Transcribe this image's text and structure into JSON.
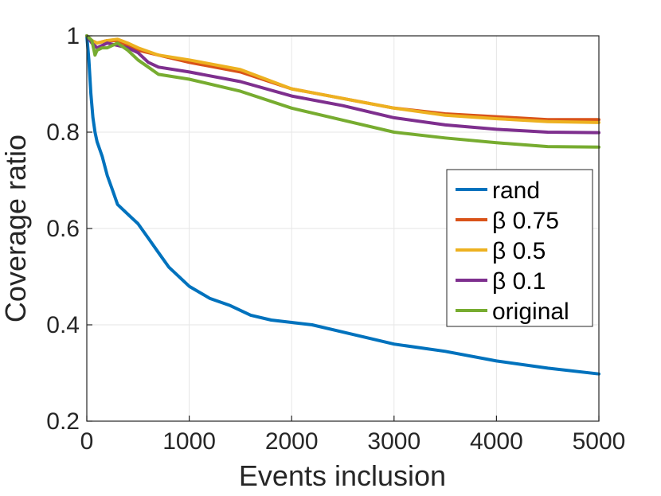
{
  "chart_data": {
    "type": "line",
    "xlabel": "Events inclusion",
    "ylabel": "Coverage ratio",
    "xlim": [
      0,
      5000
    ],
    "ylim": [
      0.2,
      1.0
    ],
    "xticks": [
      0,
      1000,
      2000,
      3000,
      4000,
      5000
    ],
    "xtick_labels": [
      "0",
      "1000",
      "2000",
      "3000",
      "4000",
      "5000"
    ],
    "yticks": [
      0.2,
      0.4,
      0.6,
      0.8,
      1.0
    ],
    "ytick_labels": [
      "0.2",
      "0.4",
      "0.6",
      "0.8",
      "1"
    ],
    "grid": true,
    "legend_position": "right",
    "series": [
      {
        "name": "rand",
        "color": "#0072BD",
        "x": [
          0,
          20,
          40,
          60,
          80,
          100,
          150,
          200,
          250,
          300,
          400,
          500,
          600,
          700,
          800,
          1000,
          1200,
          1400,
          1600,
          1800,
          2000,
          2200,
          2500,
          3000,
          3500,
          4000,
          4500,
          5000
        ],
        "y": [
          1.0,
          0.95,
          0.88,
          0.83,
          0.8,
          0.78,
          0.75,
          0.71,
          0.68,
          0.65,
          0.63,
          0.61,
          0.58,
          0.55,
          0.52,
          0.48,
          0.455,
          0.44,
          0.42,
          0.41,
          0.405,
          0.4,
          0.385,
          0.36,
          0.345,
          0.325,
          0.31,
          0.298
        ]
      },
      {
        "name": "β 0.75",
        "color": "#D95319",
        "x": [
          0,
          50,
          100,
          200,
          300,
          400,
          500,
          700,
          1000,
          1500,
          2000,
          2500,
          3000,
          3500,
          4000,
          4500,
          5000
        ],
        "y": [
          1.0,
          0.99,
          0.985,
          0.99,
          0.99,
          0.98,
          0.97,
          0.96,
          0.945,
          0.925,
          0.89,
          0.87,
          0.85,
          0.838,
          0.832,
          0.826,
          0.826
        ]
      },
      {
        "name": "β 0.5",
        "color": "#EDB120",
        "x": [
          0,
          50,
          100,
          200,
          300,
          400,
          500,
          700,
          1000,
          1500,
          2000,
          2500,
          3000,
          3500,
          4000,
          4500,
          5000
        ],
        "y": [
          1.0,
          0.99,
          0.985,
          0.99,
          0.993,
          0.985,
          0.975,
          0.96,
          0.95,
          0.93,
          0.89,
          0.87,
          0.85,
          0.835,
          0.828,
          0.822,
          0.82
        ]
      },
      {
        "name": "β 0.1",
        "color": "#7E2F8E",
        "x": [
          0,
          50,
          100,
          200,
          300,
          400,
          500,
          600,
          700,
          1000,
          1500,
          2000,
          2500,
          3000,
          3500,
          4000,
          4500,
          5000
        ],
        "y": [
          1.0,
          0.985,
          0.975,
          0.985,
          0.98,
          0.975,
          0.965,
          0.945,
          0.935,
          0.925,
          0.905,
          0.875,
          0.855,
          0.83,
          0.815,
          0.806,
          0.8,
          0.799
        ]
      },
      {
        "name": "original",
        "color": "#77AC30",
        "x": [
          0,
          50,
          80,
          100,
          150,
          200,
          300,
          400,
          500,
          600,
          700,
          1000,
          1500,
          2000,
          2500,
          3000,
          3500,
          4000,
          4500,
          5000
        ],
        "y": [
          1.0,
          0.99,
          0.96,
          0.97,
          0.975,
          0.975,
          0.985,
          0.97,
          0.95,
          0.935,
          0.92,
          0.91,
          0.885,
          0.85,
          0.825,
          0.8,
          0.788,
          0.778,
          0.77,
          0.769
        ]
      }
    ]
  }
}
